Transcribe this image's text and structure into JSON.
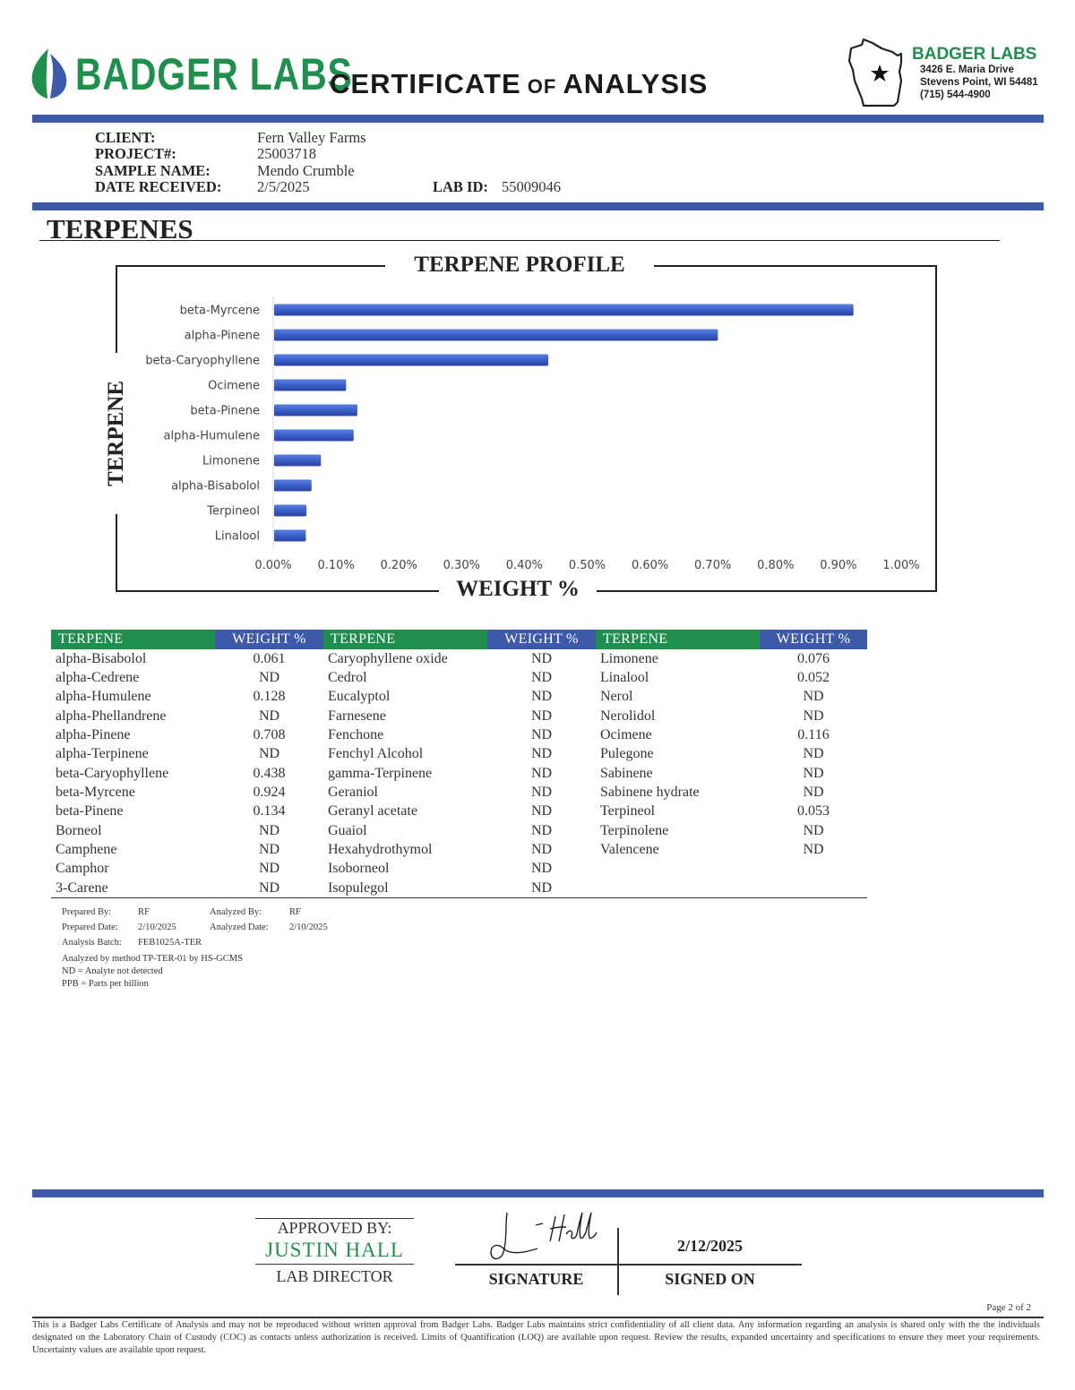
{
  "header": {
    "brand_name": "BADGER LABS",
    "title_part1": "CERTIFICATE",
    "title_part2": " OF ",
    "title_part3": "ANALYSIS",
    "address": {
      "brand": "BADGER LABS",
      "street": "3426 E. Maria Drive",
      "city": "Stevens Point, WI 54481",
      "phone": "(715) 544-4900"
    }
  },
  "colors": {
    "green": "#1f8f4e",
    "blue": "#3d5aa8",
    "bar_blue": "#3b5fc8"
  },
  "client_info": {
    "client_label": "CLIENT:",
    "client_value": "Fern Valley Farms",
    "project_label": "PROJECT#:",
    "project_value": "25003718",
    "sample_label": "SAMPLE NAME:",
    "sample_value": "Mendo Crumble",
    "date_label": "DATE RECEIVED:",
    "date_value": "2/5/2025",
    "labid_label": "LAB ID:",
    "labid_value": "55009046"
  },
  "section_title": "TERPENES",
  "chart_data": {
    "type": "bar",
    "orientation": "horizontal",
    "title": "TERPENE PROFILE",
    "xlabel": "WEIGHT %",
    "ylabel": "TERPENE",
    "categories": [
      "beta-Myrcene",
      "alpha-Pinene",
      "beta-Caryophyllene",
      "Ocimene",
      "beta-Pinene",
      "alpha-Humulene",
      "Limonene",
      "alpha-Bisabolol",
      "Terpineol",
      "Linalool"
    ],
    "values": [
      0.924,
      0.708,
      0.438,
      0.116,
      0.134,
      0.128,
      0.076,
      0.061,
      0.053,
      0.052
    ],
    "xlim": [
      0,
      1.0
    ],
    "xticks": [
      "0.00%",
      "0.10%",
      "0.20%",
      "0.30%",
      "0.40%",
      "0.50%",
      "0.60%",
      "0.70%",
      "0.80%",
      "0.90%",
      "1.00%"
    ],
    "grid": false,
    "legend": "none"
  },
  "table": {
    "headers": {
      "name": "TERPENE",
      "weight": "WEIGHT %"
    },
    "columns": [
      [
        [
          "alpha-Bisabolol",
          "0.061"
        ],
        [
          "alpha-Cedrene",
          "ND"
        ],
        [
          "alpha-Humulene",
          "0.128"
        ],
        [
          "alpha-Phellandrene",
          "ND"
        ],
        [
          "alpha-Pinene",
          "0.708"
        ],
        [
          "alpha-Terpinene",
          "ND"
        ],
        [
          "beta-Caryophyllene",
          "0.438"
        ],
        [
          "beta-Myrcene",
          "0.924"
        ],
        [
          "beta-Pinene",
          "0.134"
        ],
        [
          "Borneol",
          "ND"
        ],
        [
          "Camphene",
          "ND"
        ],
        [
          "Camphor",
          "ND"
        ],
        [
          "3-Carene",
          "ND"
        ]
      ],
      [
        [
          "Caryophyllene oxide",
          "ND"
        ],
        [
          "Cedrol",
          "ND"
        ],
        [
          "Eucalyptol",
          "ND"
        ],
        [
          "Farnesene",
          "ND"
        ],
        [
          "Fenchone",
          "ND"
        ],
        [
          "Fenchyl Alcohol",
          "ND"
        ],
        [
          "gamma-Terpinene",
          "ND"
        ],
        [
          "Geraniol",
          "ND"
        ],
        [
          "Geranyl acetate",
          "ND"
        ],
        [
          "Guaiol",
          "ND"
        ],
        [
          "Hexahydrothymol",
          "ND"
        ],
        [
          "Isoborneol",
          "ND"
        ],
        [
          "Isopulegol",
          "ND"
        ]
      ],
      [
        [
          "Limonene",
          "0.076"
        ],
        [
          "Linalool",
          "0.052"
        ],
        [
          "Nerol",
          "ND"
        ],
        [
          "Nerolidol",
          "ND"
        ],
        [
          "Ocimene",
          "0.116"
        ],
        [
          "Pulegone",
          "ND"
        ],
        [
          "Sabinene",
          "ND"
        ],
        [
          "Sabinene hydrate",
          "ND"
        ],
        [
          "Terpineol",
          "0.053"
        ],
        [
          "Terpinolene",
          "ND"
        ],
        [
          "Valencene",
          "ND"
        ],
        [
          "",
          ""
        ],
        [
          "",
          ""
        ]
      ]
    ]
  },
  "notes": {
    "prepared_by_label": "Prepared By:",
    "prepared_by_value": "RF",
    "analyzed_by_label": "Analyzed By:",
    "analyzed_by_value": "RF",
    "prepared_date_label": "Prepared Date:",
    "prepared_date_value": "2/10/2025",
    "analyzed_date_label": "Analyzed Date:",
    "analyzed_date_value": "2/10/2025",
    "batch_label": "Analysis Batch:",
    "batch_value": "FEB1025A-TER",
    "method": "Analyzed by method TP-TER-01 by HS-GCMS",
    "nd_def": "ND = Analyte not detected",
    "ppb_def": "PPB = Parts per billion"
  },
  "approval": {
    "approved_by": "APPROVED BY:",
    "name": "JUSTIN HALL",
    "role": "LAB DIRECTOR",
    "signature_label": "SIGNATURE",
    "signed_on_label": "SIGNED ON",
    "signed_date": "2/12/2025",
    "signature_text": "J. Hall"
  },
  "footer": {
    "page": "Page 2 of 2",
    "disclaimer": "This is a Badger Labs Certificate of Analysis and may not be reproduced without written approval from Badger Labs. Badger Labs maintains strict confidentiality of all client data. Any information regarding an analysis is shared only with the the individuals designated on the Laboratory Chain of Custody (COC) as contacts unless authorization is received. Limits of Quantification (LOQ) are available upon request. Review the results, expanded uncertainty and specifications to ensure they meet your requirements. Uncertainty values are available upon request."
  }
}
